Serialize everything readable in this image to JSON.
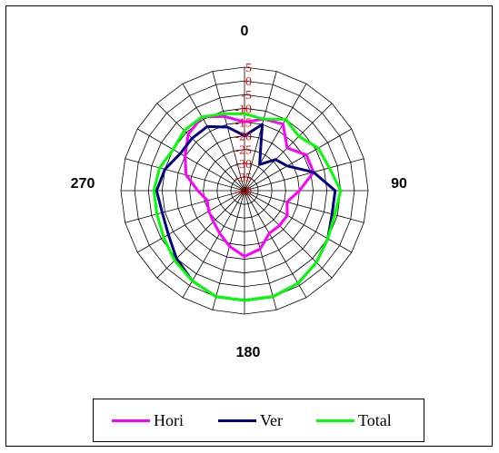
{
  "chart_data": {
    "type": "radar",
    "angle_labels": [
      "0",
      "90",
      "180",
      "270"
    ],
    "radial_ticks": [
      5,
      0,
      -5,
      -10,
      -15,
      -20,
      -25,
      -30,
      -35,
      -40
    ],
    "rlim": [
      -40,
      5
    ],
    "angles": [
      0,
      15,
      30,
      45,
      60,
      75,
      90,
      105,
      120,
      135,
      150,
      165,
      180,
      195,
      210,
      225,
      240,
      255,
      270,
      285,
      300,
      315,
      330,
      345
    ],
    "grid": true,
    "legend_position": "bottom",
    "series": [
      {
        "name": "Hori",
        "color": "#ff00ff",
        "values": [
          -15,
          -13,
          -12,
          -18,
          -14,
          -14,
          -20,
          -24,
          -22,
          -22,
          -22,
          -18,
          -16,
          -19,
          -22,
          -24,
          -25,
          -26,
          -23,
          -18,
          -15,
          -11,
          -9,
          -12
        ]
      },
      {
        "name": "Ver",
        "color": "#000080",
        "values": [
          -20,
          -15,
          -29,
          -24,
          -22,
          -14,
          -7,
          -7,
          -5,
          -3,
          -1,
          0,
          0,
          0,
          -2,
          -5,
          -8,
          -9,
          -8,
          -10,
          -13,
          -13,
          -13,
          -16
        ]
      },
      {
        "name": "Total",
        "color": "#00ff00",
        "values": [
          -12,
          -13,
          -10,
          -12,
          -9,
          -8,
          -5,
          -6,
          -5,
          -3,
          -1,
          0,
          0,
          0,
          -2,
          -4,
          -6,
          -7,
          -7,
          -8,
          -10,
          -9,
          -9,
          -11
        ]
      }
    ]
  }
}
